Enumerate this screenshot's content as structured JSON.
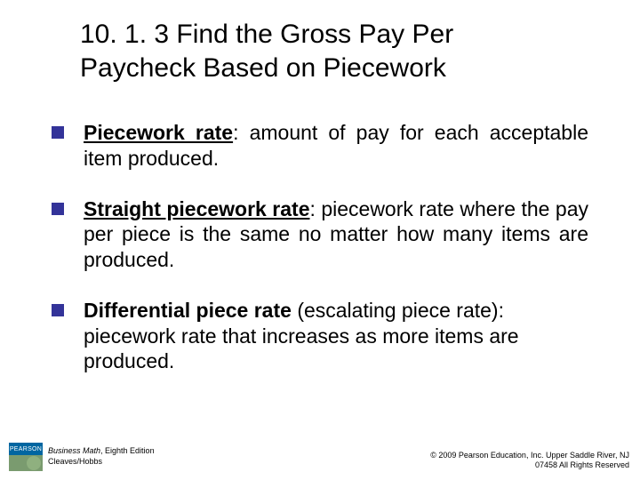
{
  "title": "10. 1. 3 Find the Gross Pay Per Paycheck Based on Piecework",
  "bullets": [
    {
      "term": "Piecework rate",
      "separator": ": ",
      "definition": "amount of pay for each acceptable item produced.",
      "justify": true
    },
    {
      "term": "Straight piecework rate",
      "separator": ": ",
      "definition": "piecework rate where the pay per piece is the same no matter how many items are produced.",
      "justify": true
    },
    {
      "term": "Differential piece rate",
      "separator": " ",
      "paren": "(escalating piece rate): ",
      "definition": "piecework rate that increases as more items are produced.",
      "justify": false
    }
  ],
  "footer": {
    "logo_top": "PEARSON",
    "book_title": "Business Math",
    "book_edition": ", Eighth Edition",
    "authors": "Cleaves/Hobbs",
    "copyright": "© 2009 Pearson Education, Inc. Upper Saddle River, NJ",
    "rights": "07458  All Rights Reserved"
  },
  "colors": {
    "bullet_marker": "#333399",
    "logo_blue": "#0066a1",
    "logo_green": "#7a9b6f",
    "background": "#ffffff",
    "text": "#000000"
  },
  "typography": {
    "title_fontsize": 30,
    "body_fontsize": 23,
    "footer_fontsize": 9
  }
}
